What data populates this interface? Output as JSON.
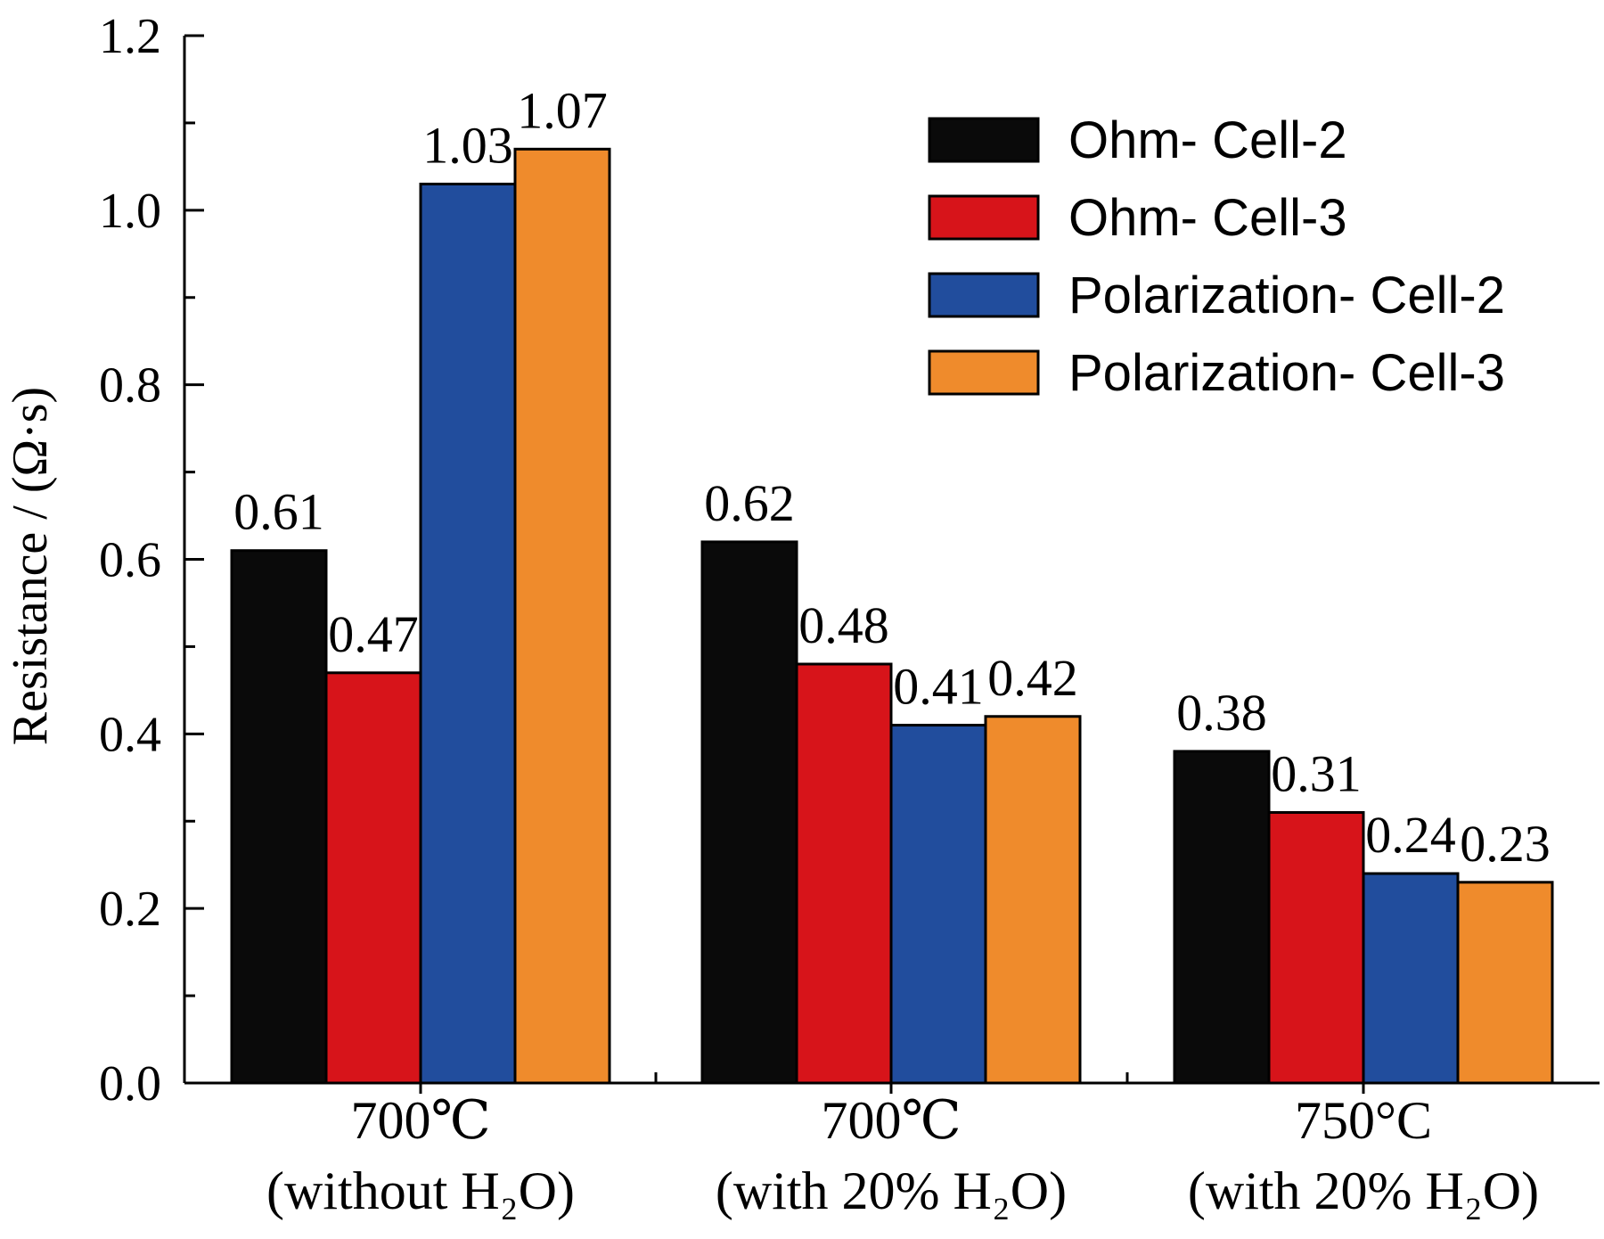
{
  "chart_data": {
    "type": "bar",
    "ylabel": "Resistance / (Ω·s)",
    "ylim": [
      0,
      1.2
    ],
    "yticks": [
      "0.0",
      "0.2",
      "0.4",
      "0.6",
      "0.8",
      "1.0",
      "1.2"
    ],
    "categories": [
      {
        "line1": "700℃",
        "line2": "(without H₂O)"
      },
      {
        "line1": "700℃",
        "line2": "(with 20% H₂O)"
      },
      {
        "line1": "750°C",
        "line2": "(with 20% H₂O)"
      }
    ],
    "series": [
      {
        "name": "Ohm- Cell-2",
        "color": "#0a0a0a",
        "values": [
          0.61,
          0.62,
          0.38
        ],
        "labels": [
          "0.61",
          "0.62",
          "0.38"
        ]
      },
      {
        "name": "Ohm- Cell-3",
        "color": "#d7141a",
        "values": [
          0.47,
          0.48,
          0.31
        ],
        "labels": [
          "0.47",
          "0.48",
          "0.31"
        ]
      },
      {
        "name": "Polarization- Cell-2",
        "color": "#214d9d",
        "values": [
          1.03,
          0.41,
          0.24
        ],
        "labels": [
          "1.03",
          "0.41",
          "0.24"
        ]
      },
      {
        "name": "Polarization- Cell-3",
        "color": "#ef8b2c",
        "values": [
          1.07,
          0.42,
          0.23
        ],
        "labels": [
          "1.07",
          "0.42",
          "0.23"
        ]
      }
    ],
    "legend_position": "top-right",
    "grid": false
  }
}
